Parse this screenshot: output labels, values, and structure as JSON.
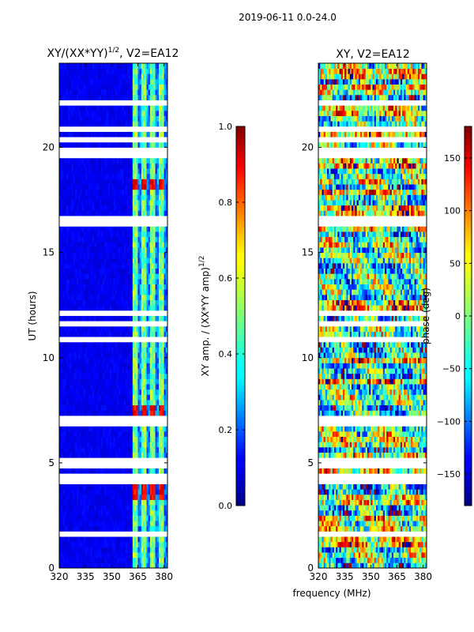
{
  "figure": {
    "suptitle": "2019-06-11 0.0-24.0",
    "xlabel": "frequency (MHz)"
  },
  "chart_data": [
    {
      "type": "heatmap",
      "title": "XY/(XX*YY)",
      "title_power": "1/2",
      "title_suffix": ", V2=EA12",
      "ylabel": "UT (hours)",
      "xlim": [
        320,
        382
      ],
      "ylim": [
        0,
        24
      ],
      "xticks": [
        "320",
        "335",
        "350",
        "365",
        "380"
      ],
      "xtick_values": [
        320,
        335,
        350,
        365,
        380
      ],
      "yticks": [
        "0",
        "5",
        "10",
        "15",
        "20"
      ],
      "ytick_values": [
        0,
        5,
        10,
        15,
        20
      ],
      "colorbar": {
        "label": "XY amp. / (XX*YY amp)",
        "label_power": "1/2",
        "range": [
          0.0,
          1.0
        ],
        "ticks": [
          "0.0",
          "0.2",
          "0.4",
          "0.6",
          "0.8",
          "1.0"
        ],
        "tick_values": [
          0.0,
          0.2,
          0.4,
          0.6,
          0.8,
          1.0
        ]
      },
      "flagged_ut_hours": [
        1.5,
        4.1,
        4.3,
        4.8,
        5.0,
        6.9,
        7.0,
        10.8,
        11.7,
        12.0,
        12.2,
        16.3,
        16.5,
        19.5,
        19.9,
        20.3,
        20.8,
        22.2
      ],
      "high_amp_channels_mhz": [
        363.5,
        368.5,
        373.5,
        378.5
      ],
      "high_amp_ut_ranges": [
        [
          3.2,
          4.0
        ],
        [
          7.2,
          7.7
        ],
        [
          18.1,
          18.6
        ]
      ]
    },
    {
      "type": "heatmap",
      "title": "XY, V2=EA12",
      "ylabel": "",
      "xlim": [
        320,
        382
      ],
      "ylim": [
        0,
        24
      ],
      "xticks": [
        "320",
        "335",
        "350",
        "365",
        "380"
      ],
      "xtick_values": [
        320,
        335,
        350,
        365,
        380
      ],
      "yticks": [
        "0",
        "5",
        "10",
        "15",
        "20"
      ],
      "ytick_values": [
        0,
        5,
        10,
        15,
        20
      ],
      "colorbar": {
        "label": "phase (deg)",
        "range": [
          -180,
          180
        ],
        "ticks": [
          "−150",
          "−100",
          "−50",
          "0",
          "50",
          "100",
          "150"
        ],
        "tick_values": [
          -150,
          -100,
          -50,
          0,
          50,
          100,
          150
        ]
      },
      "flagged_ut_hours": [
        1.5,
        4.1,
        4.3,
        4.8,
        5.0,
        6.9,
        7.0,
        10.8,
        11.7,
        12.0,
        12.2,
        16.3,
        16.5,
        19.5,
        19.9,
        20.3,
        20.8,
        22.2
      ]
    }
  ]
}
